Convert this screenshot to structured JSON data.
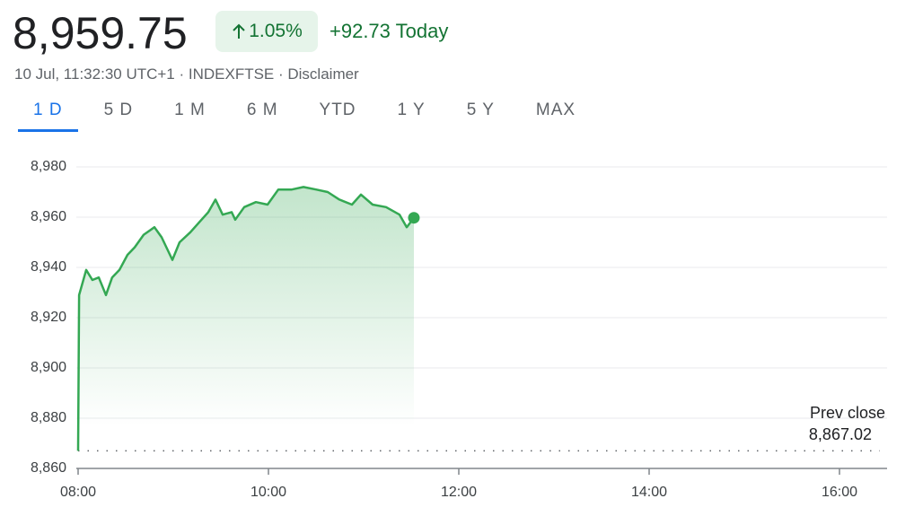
{
  "header": {
    "price": "8,959.75",
    "change_percent": "1.05%",
    "change_today": "+92.73 Today",
    "subtitle": "10 Jul, 11:32:30 UTC+1 · INDEXFTSE · Disclaimer"
  },
  "tabs": {
    "items": [
      "1 D",
      "5 D",
      "1 M",
      "6 M",
      "YTD",
      "1 Y",
      "5 Y",
      "MAX"
    ],
    "selected": 0
  },
  "chart_data": {
    "type": "line",
    "color": "#34a853",
    "x": [
      8.0,
      8.01,
      8.085,
      8.15,
      8.217,
      8.292,
      8.358,
      8.434,
      8.519,
      8.594,
      8.689,
      8.802,
      8.877,
      8.991,
      9.066,
      9.179,
      9.274,
      9.368,
      9.443,
      9.519,
      9.613,
      9.651,
      9.745,
      9.868,
      9.991,
      10.104,
      10.245,
      10.368,
      10.5,
      10.623,
      10.745,
      10.877,
      10.972,
      11.094,
      11.236,
      11.377,
      11.453,
      11.528
    ],
    "values": [
      8867,
      8929,
      8939,
      8935,
      8936,
      8929,
      8936,
      8939,
      8945,
      8948,
      8953,
      8956,
      8952,
      8943,
      8950,
      8954,
      8958,
      8962,
      8967,
      8961,
      8962,
      8959,
      8964,
      8966,
      8965,
      8971,
      8971,
      8972,
      8971,
      8970,
      8967,
      8965,
      8969,
      8965,
      8964,
      8961,
      8956,
      8959.75
    ],
    "xlim": [
      8,
      16.5
    ],
    "xticks": [
      {
        "value": 8,
        "label": "08:00"
      },
      {
        "value": 10,
        "label": "10:00"
      },
      {
        "value": 12,
        "label": "12:00"
      },
      {
        "value": 14,
        "label": "14:00"
      },
      {
        "value": 16,
        "label": "16:00"
      }
    ],
    "ylim": [
      8860,
      8980
    ],
    "yticks": [
      {
        "value": 8860,
        "label": "8,860"
      },
      {
        "value": 8880,
        "label": "8,880"
      },
      {
        "value": 8900,
        "label": "8,900"
      },
      {
        "value": 8920,
        "label": "8,920"
      },
      {
        "value": 8940,
        "label": "8,940"
      },
      {
        "value": 8960,
        "label": "8,960"
      },
      {
        "value": 8980,
        "label": "8,980"
      }
    ],
    "grid": true,
    "prev_close": {
      "label": "Prev close",
      "value": 8867.02,
      "value_label": "8,867.02"
    }
  }
}
